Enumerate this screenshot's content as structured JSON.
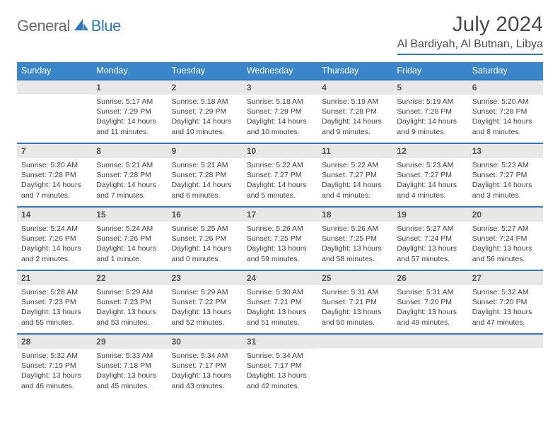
{
  "brand": {
    "part1": "General",
    "part2": "Blue"
  },
  "title": "July 2024",
  "location": "Al Bardiyah, Al Butnan, Libya",
  "colors": {
    "accent": "#3a86c8",
    "rule": "#2f78bf",
    "daynum_bg": "#e8e8e8",
    "text": "#404040"
  },
  "weekdays": [
    "Sunday",
    "Monday",
    "Tuesday",
    "Wednesday",
    "Thursday",
    "Friday",
    "Saturday"
  ],
  "weeks": [
    [
      {
        "empty": true
      },
      {
        "n": "1",
        "sr": "Sunrise: 5:17 AM",
        "ss": "Sunset: 7:29 PM",
        "dl": "Daylight: 14 hours and 11 minutes."
      },
      {
        "n": "2",
        "sr": "Sunrise: 5:18 AM",
        "ss": "Sunset: 7:29 PM",
        "dl": "Daylight: 14 hours and 10 minutes."
      },
      {
        "n": "3",
        "sr": "Sunrise: 5:18 AM",
        "ss": "Sunset: 7:29 PM",
        "dl": "Daylight: 14 hours and 10 minutes."
      },
      {
        "n": "4",
        "sr": "Sunrise: 5:19 AM",
        "ss": "Sunset: 7:28 PM",
        "dl": "Daylight: 14 hours and 9 minutes."
      },
      {
        "n": "5",
        "sr": "Sunrise: 5:19 AM",
        "ss": "Sunset: 7:28 PM",
        "dl": "Daylight: 14 hours and 9 minutes."
      },
      {
        "n": "6",
        "sr": "Sunrise: 5:20 AM",
        "ss": "Sunset: 7:28 PM",
        "dl": "Daylight: 14 hours and 8 minutes."
      }
    ],
    [
      {
        "n": "7",
        "sr": "Sunrise: 5:20 AM",
        "ss": "Sunset: 7:28 PM",
        "dl": "Daylight: 14 hours and 7 minutes."
      },
      {
        "n": "8",
        "sr": "Sunrise: 5:21 AM",
        "ss": "Sunset: 7:28 PM",
        "dl": "Daylight: 14 hours and 7 minutes."
      },
      {
        "n": "9",
        "sr": "Sunrise: 5:21 AM",
        "ss": "Sunset: 7:28 PM",
        "dl": "Daylight: 14 hours and 6 minutes."
      },
      {
        "n": "10",
        "sr": "Sunrise: 5:22 AM",
        "ss": "Sunset: 7:27 PM",
        "dl": "Daylight: 14 hours and 5 minutes."
      },
      {
        "n": "11",
        "sr": "Sunrise: 5:22 AM",
        "ss": "Sunset: 7:27 PM",
        "dl": "Daylight: 14 hours and 4 minutes."
      },
      {
        "n": "12",
        "sr": "Sunrise: 5:23 AM",
        "ss": "Sunset: 7:27 PM",
        "dl": "Daylight: 14 hours and 4 minutes."
      },
      {
        "n": "13",
        "sr": "Sunrise: 5:23 AM",
        "ss": "Sunset: 7:27 PM",
        "dl": "Daylight: 14 hours and 3 minutes."
      }
    ],
    [
      {
        "n": "14",
        "sr": "Sunrise: 5:24 AM",
        "ss": "Sunset: 7:26 PM",
        "dl": "Daylight: 14 hours and 2 minutes."
      },
      {
        "n": "15",
        "sr": "Sunrise: 5:24 AM",
        "ss": "Sunset: 7:26 PM",
        "dl": "Daylight: 14 hours and 1 minute."
      },
      {
        "n": "16",
        "sr": "Sunrise: 5:25 AM",
        "ss": "Sunset: 7:26 PM",
        "dl": "Daylight: 14 hours and 0 minutes."
      },
      {
        "n": "17",
        "sr": "Sunrise: 5:26 AM",
        "ss": "Sunset: 7:25 PM",
        "dl": "Daylight: 13 hours and 59 minutes."
      },
      {
        "n": "18",
        "sr": "Sunrise: 5:26 AM",
        "ss": "Sunset: 7:25 PM",
        "dl": "Daylight: 13 hours and 58 minutes."
      },
      {
        "n": "19",
        "sr": "Sunrise: 5:27 AM",
        "ss": "Sunset: 7:24 PM",
        "dl": "Daylight: 13 hours and 57 minutes."
      },
      {
        "n": "20",
        "sr": "Sunrise: 5:27 AM",
        "ss": "Sunset: 7:24 PM",
        "dl": "Daylight: 13 hours and 56 minutes."
      }
    ],
    [
      {
        "n": "21",
        "sr": "Sunrise: 5:28 AM",
        "ss": "Sunset: 7:23 PM",
        "dl": "Daylight: 13 hours and 55 minutes."
      },
      {
        "n": "22",
        "sr": "Sunrise: 5:29 AM",
        "ss": "Sunset: 7:23 PM",
        "dl": "Daylight: 13 hours and 53 minutes."
      },
      {
        "n": "23",
        "sr": "Sunrise: 5:29 AM",
        "ss": "Sunset: 7:22 PM",
        "dl": "Daylight: 13 hours and 52 minutes."
      },
      {
        "n": "24",
        "sr": "Sunrise: 5:30 AM",
        "ss": "Sunset: 7:21 PM",
        "dl": "Daylight: 13 hours and 51 minutes."
      },
      {
        "n": "25",
        "sr": "Sunrise: 5:31 AM",
        "ss": "Sunset: 7:21 PM",
        "dl": "Daylight: 13 hours and 50 minutes."
      },
      {
        "n": "26",
        "sr": "Sunrise: 5:31 AM",
        "ss": "Sunset: 7:20 PM",
        "dl": "Daylight: 13 hours and 49 minutes."
      },
      {
        "n": "27",
        "sr": "Sunrise: 5:32 AM",
        "ss": "Sunset: 7:20 PM",
        "dl": "Daylight: 13 hours and 47 minutes."
      }
    ],
    [
      {
        "n": "28",
        "sr": "Sunrise: 5:32 AM",
        "ss": "Sunset: 7:19 PM",
        "dl": "Daylight: 13 hours and 46 minutes."
      },
      {
        "n": "29",
        "sr": "Sunrise: 5:33 AM",
        "ss": "Sunset: 7:18 PM",
        "dl": "Daylight: 13 hours and 45 minutes."
      },
      {
        "n": "30",
        "sr": "Sunrise: 5:34 AM",
        "ss": "Sunset: 7:17 PM",
        "dl": "Daylight: 13 hours and 43 minutes."
      },
      {
        "n": "31",
        "sr": "Sunrise: 5:34 AM",
        "ss": "Sunset: 7:17 PM",
        "dl": "Daylight: 13 hours and 42 minutes."
      },
      {
        "empty": true
      },
      {
        "empty": true
      },
      {
        "empty": true
      }
    ]
  ]
}
